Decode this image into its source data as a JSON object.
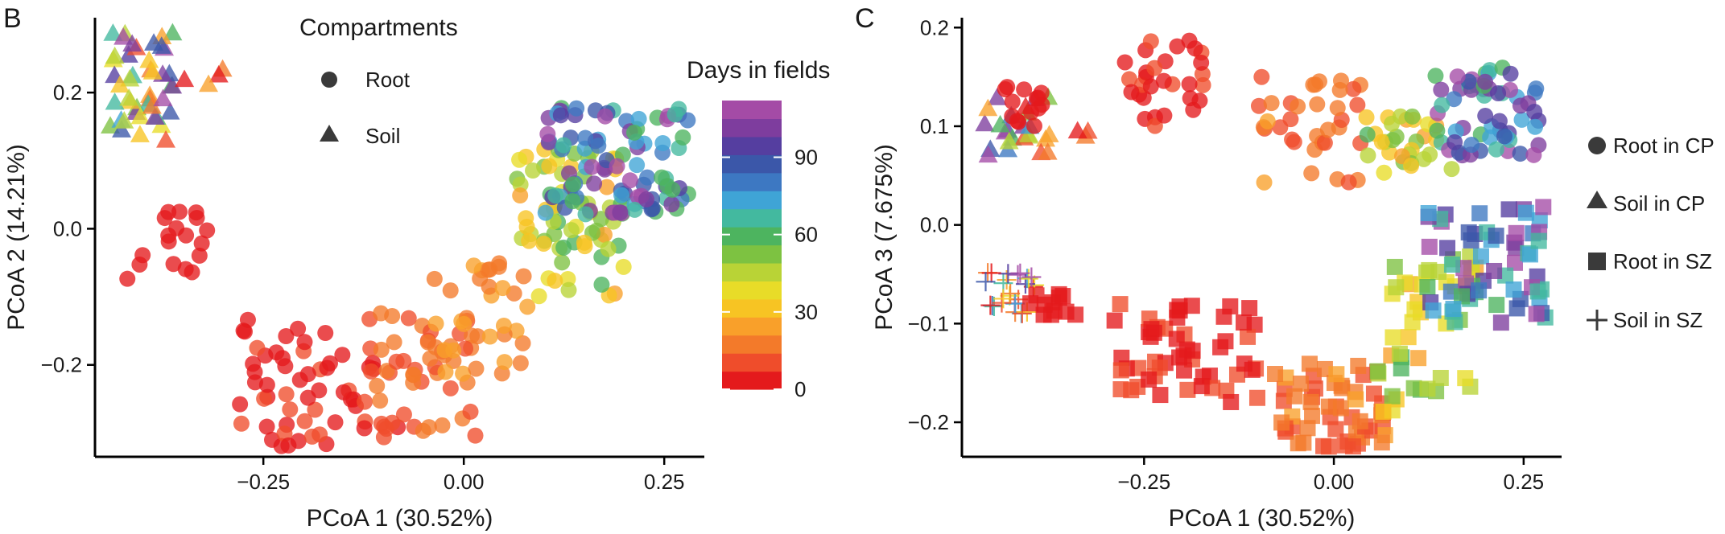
{
  "figure": {
    "panel_b_letter": "B",
    "panel_c_letter": "C"
  },
  "legend_b": {
    "title": "Compartments",
    "items": [
      {
        "label": "Root",
        "shape": "circle"
      },
      {
        "label": "Soil",
        "shape": "triangle"
      }
    ]
  },
  "colorbar": {
    "title": "Days in fields",
    "ticks": [
      0,
      30,
      60,
      90
    ],
    "range": [
      0,
      112
    ],
    "colors": [
      "#e41a1c",
      "#ef4d2b",
      "#f37a2a",
      "#f9a02a",
      "#f7c423",
      "#e8dc28",
      "#b9d336",
      "#7dc241",
      "#4db45f",
      "#43b99f",
      "#3fa4d6",
      "#3d78c2",
      "#3b57a9",
      "#553ea0",
      "#7e3d9e",
      "#a44ba6"
    ]
  },
  "legend_c": {
    "items": [
      {
        "label": "Root in CP",
        "shape": "circle"
      },
      {
        "label": "Soil in CP",
        "shape": "triangle"
      },
      {
        "label": "Root in SZ",
        "shape": "square"
      },
      {
        "label": "Soil in SZ",
        "shape": "plus"
      }
    ]
  },
  "chart_data": [
    {
      "type": "scatter",
      "panel": "B",
      "xlabel": "PCoA 1 (30.52%)",
      "ylabel": "PCoA 2 (14.21%)",
      "xlim": [
        -0.46,
        0.3
      ],
      "ylim": [
        -0.335,
        0.31
      ],
      "xticks": [
        -0.25,
        0.0,
        0.25
      ],
      "xtick_labels": [
        "−0.25",
        "0.00",
        "0.25"
      ],
      "yticks": [
        -0.2,
        0.0,
        0.2
      ],
      "ytick_labels": [
        "−0.2",
        "0.0",
        "0.2"
      ],
      "grid": false,
      "groups": [
        {
          "shape": "triangle",
          "compartment": "Soil",
          "day_range": [
            0,
            112
          ],
          "n": 45,
          "x_range": [
            -0.445,
            -0.36
          ],
          "y_range": [
            0.13,
            0.29
          ]
        },
        {
          "shape": "triangle",
          "compartment": "Soil",
          "day_range": [
            0,
            30
          ],
          "n": 4,
          "x_range": [
            -0.36,
            -0.3
          ],
          "y_range": [
            0.2,
            0.24
          ]
        },
        {
          "shape": "circle",
          "compartment": "Root",
          "day_range": [
            0,
            3
          ],
          "n": 18,
          "x_range": [
            -0.42,
            -0.32
          ],
          "y_range": [
            -0.08,
            0.04
          ]
        },
        {
          "shape": "circle",
          "compartment": "Root",
          "day_range": [
            2,
            10
          ],
          "n": 60,
          "x_range": [
            -0.28,
            -0.08
          ],
          "y_range": [
            -0.32,
            -0.13
          ]
        },
        {
          "shape": "circle",
          "compartment": "Root",
          "day_range": [
            8,
            20
          ],
          "n": 45,
          "x_range": [
            -0.11,
            0.02
          ],
          "y_range": [
            -0.31,
            -0.12
          ]
        },
        {
          "shape": "circle",
          "compartment": "Root",
          "day_range": [
            14,
            28
          ],
          "n": 35,
          "x_range": [
            -0.05,
            0.08
          ],
          "y_range": [
            -0.23,
            -0.05
          ]
        },
        {
          "shape": "circle",
          "compartment": "Root",
          "day_range": [
            25,
            60
          ],
          "n": 70,
          "x_range": [
            0.06,
            0.2
          ],
          "y_range": [
            -0.1,
            0.12
          ]
        },
        {
          "shape": "circle",
          "compartment": "Root",
          "day_range": [
            55,
            112
          ],
          "n": 95,
          "x_range": [
            0.1,
            0.28
          ],
          "y_range": [
            0.02,
            0.18
          ]
        }
      ]
    },
    {
      "type": "scatter",
      "panel": "C",
      "xlabel": "PCoA 1 (30.52%)",
      "ylabel": "PCoA 3 (7.675%)",
      "xlim": [
        -0.49,
        0.3
      ],
      "ylim": [
        -0.235,
        0.21
      ],
      "xticks": [
        -0.25,
        0.0,
        0.25
      ],
      "xtick_labels": [
        "−0.25",
        "0.00",
        "0.25"
      ],
      "yticks": [
        -0.2,
        -0.1,
        0.0,
        0.1,
        0.2
      ],
      "ytick_labels": [
        "−0.2",
        "−0.1",
        "0.0",
        "0.1",
        "0.2"
      ],
      "grid": false,
      "groups": [
        {
          "shape": "triangle",
          "label": "Soil in CP",
          "day_range": [
            0,
            112
          ],
          "n": 25,
          "x_range": [
            -0.46,
            -0.37
          ],
          "y_range": [
            0.07,
            0.13
          ]
        },
        {
          "shape": "triangle",
          "label": "Soil in CP",
          "day_range": [
            0,
            30
          ],
          "n": 3,
          "x_range": [
            -0.36,
            -0.32
          ],
          "y_range": [
            0.08,
            0.1
          ]
        },
        {
          "shape": "circle",
          "label": "Root in CP",
          "day_range": [
            0,
            3
          ],
          "n": 14,
          "x_range": [
            -0.44,
            -0.37
          ],
          "y_range": [
            0.1,
            0.14
          ]
        },
        {
          "shape": "circle",
          "label": "Root in CP",
          "day_range": [
            2,
            10
          ],
          "n": 30,
          "x_range": [
            -0.28,
            -0.17
          ],
          "y_range": [
            0.1,
            0.19
          ]
        },
        {
          "shape": "circle",
          "label": "Root in CP",
          "day_range": [
            8,
            22
          ],
          "n": 35,
          "x_range": [
            -0.1,
            0.04
          ],
          "y_range": [
            0.04,
            0.15
          ]
        },
        {
          "shape": "circle",
          "label": "Root in CP",
          "day_range": [
            25,
            60
          ],
          "n": 30,
          "x_range": [
            0.04,
            0.16
          ],
          "y_range": [
            0.05,
            0.11
          ]
        },
        {
          "shape": "circle",
          "label": "Root in CP",
          "day_range": [
            60,
            112
          ],
          "n": 60,
          "x_range": [
            0.13,
            0.28
          ],
          "y_range": [
            0.07,
            0.16
          ]
        },
        {
          "shape": "plus",
          "label": "Soil in SZ",
          "day_range": [
            0,
            112
          ],
          "n": 28,
          "x_range": [
            -0.465,
            -0.39
          ],
          "y_range": [
            -0.09,
            -0.045
          ]
        },
        {
          "shape": "square",
          "label": "Root in SZ",
          "day_range": [
            0,
            3
          ],
          "n": 12,
          "x_range": [
            -0.4,
            -0.33
          ],
          "y_range": [
            -0.095,
            -0.07
          ]
        },
        {
          "shape": "square",
          "label": "Root in SZ",
          "day_range": [
            2,
            10
          ],
          "n": 55,
          "x_range": [
            -0.29,
            -0.1
          ],
          "y_range": [
            -0.18,
            -0.08
          ]
        },
        {
          "shape": "square",
          "label": "Root in SZ",
          "day_range": [
            8,
            22
          ],
          "n": 55,
          "x_range": [
            -0.08,
            0.07
          ],
          "y_range": [
            -0.225,
            -0.14
          ]
        },
        {
          "shape": "square",
          "label": "Root in SZ",
          "day_range": [
            25,
            60
          ],
          "n": 45,
          "x_range": [
            0.05,
            0.19
          ],
          "y_range": [
            -0.19,
            -0.03
          ]
        },
        {
          "shape": "square",
          "label": "Root in SZ",
          "day_range": [
            60,
            112
          ],
          "n": 60,
          "x_range": [
            0.12,
            0.28
          ],
          "y_range": [
            -0.1,
            0.02
          ]
        }
      ]
    }
  ]
}
